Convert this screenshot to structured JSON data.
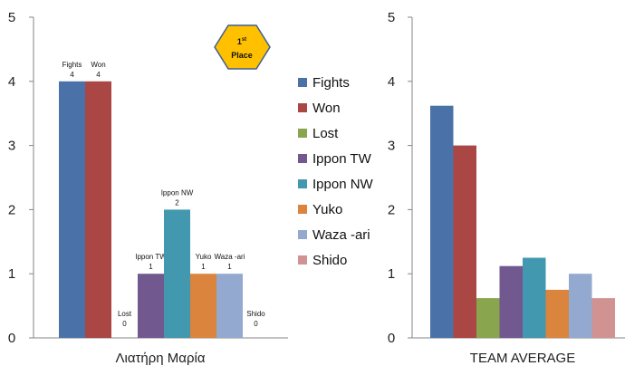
{
  "colors": {
    "Fights": "#4A72A8",
    "Won": "#AA4644",
    "Lost": "#89A54E",
    "Ippon TW": "#71588F",
    "Ippon NW": "#4198AF",
    "Yuko": "#DB843D",
    "Waza -ari": "#93A9CF",
    "Shido": "#D19392",
    "axis": "#868686",
    "badge_fill": "#FFC000",
    "badge_stroke": "#3F5F8F"
  },
  "legend": [
    "Fights",
    "Won",
    "Lost",
    "Ippon TW",
    "Ippon NW",
    "Yuko",
    "Waza -ari",
    "Shido"
  ],
  "badge": {
    "line1": "1",
    "sup": "st",
    "line2": "Place"
  },
  "chart_data": [
    {
      "type": "bar",
      "title": "Λιατήρη Μαρία",
      "xlabel": "Λιατήρη Μαρία",
      "ylabel": "",
      "ylim": [
        0,
        5
      ],
      "yticks": [
        0,
        1,
        2,
        3,
        4,
        5
      ],
      "categories": [
        "Fights",
        "Won",
        "Lost",
        "Ippon TW",
        "Ippon NW",
        "Yuko",
        "Waza -ari",
        "Shido"
      ],
      "values": [
        4,
        4,
        0,
        1,
        2,
        1,
        1,
        0
      ],
      "data_labels": [
        {
          "name": "Fights",
          "value": "4"
        },
        {
          "name": "Won",
          "value": "4"
        },
        {
          "name": "Lost",
          "value": "0"
        },
        {
          "name": "Ippon TW",
          "value": "1"
        },
        {
          "name": "Ippon NW",
          "value": "2"
        },
        {
          "name": "Yuko",
          "value": "1"
        },
        {
          "name": "Waza -ari",
          "value": "1"
        },
        {
          "name": "Shido",
          "value": "0"
        }
      ],
      "grid": false
    },
    {
      "type": "bar",
      "title": "TEAM AVERAGE",
      "xlabel": "TEAM AVERAGE",
      "ylabel": "",
      "ylim": [
        0,
        5
      ],
      "yticks": [
        0,
        1,
        2,
        3,
        4,
        5
      ],
      "categories": [
        "Fights",
        "Won",
        "Lost",
        "Ippon TW",
        "Ippon NW",
        "Yuko",
        "Waza -ari",
        "Shido"
      ],
      "values": [
        3.62,
        3.0,
        0.62,
        1.12,
        1.25,
        0.75,
        1.0,
        0.62
      ],
      "grid": false
    }
  ]
}
